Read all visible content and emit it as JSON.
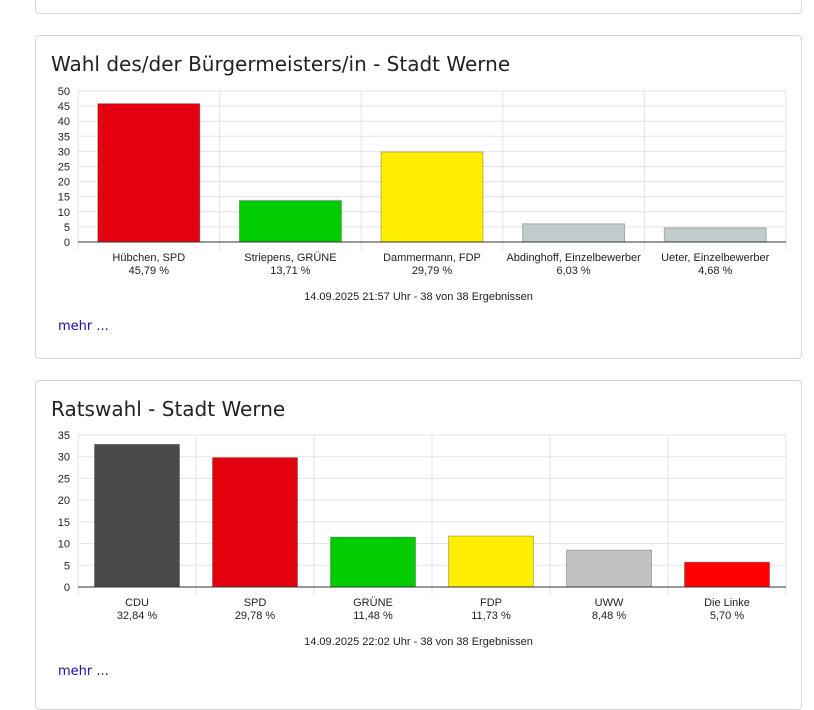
{
  "panels": [
    {
      "title": "Wahl des/der Bürgermeisters/in - Stadt Werne",
      "footnote": "14.09.2025 21:57 Uhr - 38 von 38 Ergebnissen",
      "more_link": "mehr ..."
    },
    {
      "title": "Ratswahl - Stadt Werne",
      "footnote": "14.09.2025 22:02 Uhr - 38 von 38 Ergebnissen",
      "more_link": "mehr ..."
    }
  ],
  "chart_data": [
    {
      "type": "bar",
      "title": "Wahl des/der Bürgermeisters/in - Stadt Werne",
      "categories": [
        "Hübchen, SPD",
        "Striepens, GRÜNE",
        "Dammermann, FDP",
        "Abdinghoff, Einzelbewerber",
        "Ueter, Einzelbewerber"
      ],
      "values": [
        45.79,
        13.71,
        29.79,
        6.03,
        4.68
      ],
      "value_labels": [
        "45,79 %",
        "13,71 %",
        "29,79 %",
        "6,03 %",
        "4,68 %"
      ],
      "colors": [
        "#e3000f",
        "#00cc00",
        "#ffee00",
        "#bfcbcc",
        "#bfcbcc"
      ],
      "ylim": [
        0,
        50
      ],
      "yticks": [
        0,
        5,
        10,
        15,
        20,
        25,
        30,
        35,
        40,
        45,
        50
      ],
      "grid": true,
      "xlabel": "",
      "ylabel": ""
    },
    {
      "type": "bar",
      "title": "Ratswahl - Stadt Werne",
      "categories": [
        "CDU",
        "SPD",
        "GRÜNE",
        "FDP",
        "UWW",
        "Die Linke"
      ],
      "values": [
        32.84,
        29.78,
        11.48,
        11.73,
        8.48,
        5.7
      ],
      "value_labels": [
        "32,84 %",
        "29,78 %",
        "11,48 %",
        "11,73 %",
        "8,48 %",
        "5,70 %"
      ],
      "colors": [
        "#4a4a4a",
        "#e3000f",
        "#00cc00",
        "#ffee00",
        "#c2c2c2",
        "#ff0000"
      ],
      "ylim": [
        0,
        35
      ],
      "yticks": [
        0,
        5,
        10,
        15,
        20,
        25,
        30,
        35
      ],
      "grid": true,
      "xlabel": "",
      "ylabel": ""
    }
  ]
}
